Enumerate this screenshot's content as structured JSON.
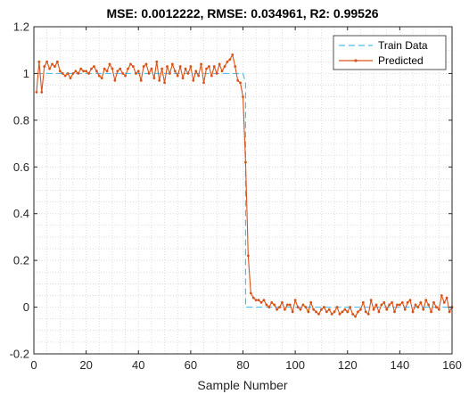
{
  "chart_data": {
    "type": "line",
    "title": "MSE: 0.0012222, RMSE: 0.034961, R2: 0.99526",
    "xlabel": "Sample Number",
    "ylabel": "",
    "xlim": [
      0,
      160
    ],
    "ylim": [
      -0.2,
      1.2
    ],
    "xticks": [
      "0",
      "20",
      "40",
      "60",
      "80",
      "100",
      "120",
      "140",
      "160"
    ],
    "yticks": [
      "-0.2",
      "0",
      "0.2",
      "0.4",
      "0.6",
      "0.8",
      "1",
      "1.2"
    ],
    "grid": "minor-dotted",
    "legend_location": "top-right",
    "series": [
      {
        "name": "Train Data",
        "style": "dashed",
        "color": "#4DBEEE",
        "x": [
          1,
          80,
          81,
          81,
          160
        ],
        "y": [
          1,
          1,
          0.96,
          0,
          0
        ]
      },
      {
        "name": "Predicted",
        "style": "solid-dot-markers",
        "color": "#D95319",
        "x": [
          1,
          2,
          3,
          4,
          5,
          6,
          7,
          8,
          9,
          10,
          11,
          12,
          13,
          14,
          15,
          16,
          17,
          18,
          19,
          20,
          21,
          22,
          23,
          24,
          25,
          26,
          27,
          28,
          29,
          30,
          31,
          32,
          33,
          34,
          35,
          36,
          37,
          38,
          39,
          40,
          41,
          42,
          43,
          44,
          45,
          46,
          47,
          48,
          49,
          50,
          51,
          52,
          53,
          54,
          55,
          56,
          57,
          58,
          59,
          60,
          61,
          62,
          63,
          64,
          65,
          66,
          67,
          68,
          69,
          70,
          71,
          72,
          73,
          74,
          75,
          76,
          77,
          78,
          79,
          80,
          81,
          82,
          83,
          84,
          85,
          86,
          87,
          88,
          89,
          90,
          91,
          92,
          93,
          94,
          95,
          96,
          97,
          98,
          99,
          100,
          101,
          102,
          103,
          104,
          105,
          106,
          107,
          108,
          109,
          110,
          111,
          112,
          113,
          114,
          115,
          116,
          117,
          118,
          119,
          120,
          121,
          122,
          123,
          124,
          125,
          126,
          127,
          128,
          129,
          130,
          131,
          132,
          133,
          134,
          135,
          136,
          137,
          138,
          139,
          140,
          141,
          142,
          143,
          144,
          145,
          146,
          147,
          148,
          149,
          150,
          151,
          152,
          153,
          154,
          155,
          156,
          157,
          158,
          159,
          160
        ],
        "y": [
          0.92,
          1.05,
          0.92,
          1.03,
          1.05,
          1.02,
          1.04,
          1.03,
          1.05,
          1.01,
          1.0,
          0.99,
          1.0,
          0.98,
          1.0,
          1.01,
          1.0,
          1.02,
          1.01,
          1.01,
          1.0,
          1.02,
          1.03,
          1.01,
          0.99,
          0.98,
          1.02,
          1.01,
          1.04,
          1.02,
          0.97,
          1.01,
          1.02,
          1.0,
          0.99,
          1.02,
          1.04,
          1.03,
          1.0,
          1.01,
          0.97,
          1.03,
          1.04,
          1.0,
          1.02,
          0.98,
          1.05,
          0.97,
          1.02,
          0.96,
          1.03,
          1.0,
          1.04,
          1.01,
          0.99,
          1.03,
          0.98,
          1.02,
          1.0,
          1.03,
          0.97,
          1.01,
          0.99,
          1.04,
          0.96,
          1.02,
          1.03,
          0.99,
          1.03,
          1.0,
          1.04,
          1.01,
          1.03,
          1.05,
          1.06,
          1.08,
          1.03,
          0.97,
          0.96,
          0.9,
          0.62,
          0.22,
          0.06,
          0.04,
          0.03,
          0.03,
          0.02,
          0.03,
          0.01,
          0.0,
          0.02,
          0.01,
          -0.01,
          0.0,
          0.02,
          -0.01,
          0.01,
          0.01,
          -0.02,
          0.03,
          0.0,
          -0.01,
          0.01,
          0.0,
          -0.02,
          0.02,
          -0.01,
          -0.02,
          -0.03,
          -0.01,
          0.0,
          -0.02,
          -0.01,
          -0.03,
          -0.02,
          0.0,
          -0.03,
          -0.02,
          -0.01,
          -0.02,
          0.0,
          -0.03,
          -0.04,
          -0.02,
          -0.01,
          0.02,
          -0.02,
          -0.03,
          0.03,
          -0.01,
          0.01,
          -0.02,
          0.01,
          0.02,
          -0.01,
          0.01,
          0.02,
          -0.02,
          0.01,
          0.01,
          0.02,
          -0.01,
          0.02,
          0.03,
          -0.02,
          0.01,
          0.0,
          0.02,
          -0.01,
          0.03,
          0.01,
          -0.02,
          0.02,
          0.0,
          -0.01,
          0.05,
          0.02,
          0.04,
          -0.02,
          0.0
        ]
      }
    ]
  }
}
